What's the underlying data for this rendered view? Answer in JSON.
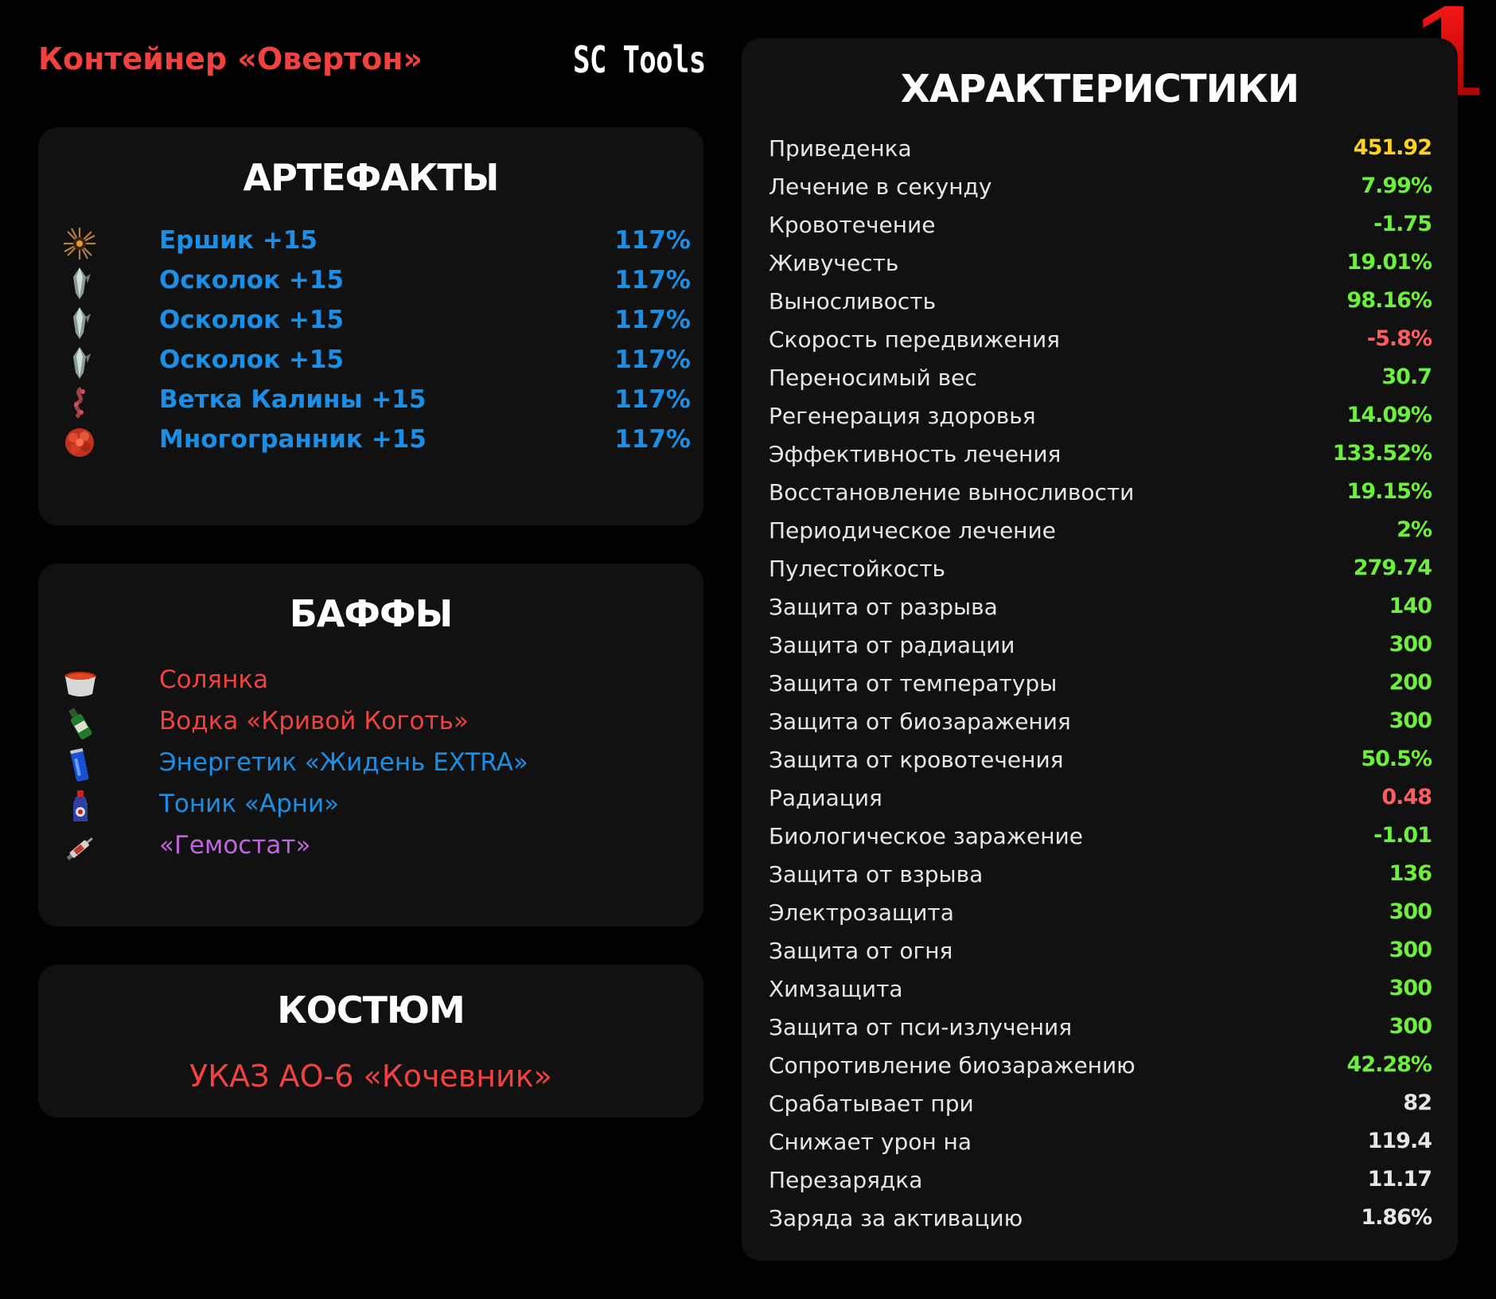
{
  "header": {
    "container_title": "Контейнер «Овертон»",
    "brand": "SC Tools",
    "slot_number": "1"
  },
  "artifacts": {
    "title": "АРТЕФАКТЫ",
    "items": [
      {
        "name": "Ершик +15",
        "percent": "117%",
        "icon": "urchin-artifact-icon"
      },
      {
        "name": "Осколок +15",
        "percent": "117%",
        "icon": "crystal-shard-icon"
      },
      {
        "name": "Осколок +15",
        "percent": "117%",
        "icon": "crystal-shard-icon"
      },
      {
        "name": "Осколок +15",
        "percent": "117%",
        "icon": "crystal-shard-icon"
      },
      {
        "name": "Ветка Калины +15",
        "percent": "117%",
        "icon": "viburnum-branch-icon"
      },
      {
        "name": "Многогранник +15",
        "percent": "117%",
        "icon": "polyhedron-artifact-icon"
      }
    ]
  },
  "buffs": {
    "title": "БАФФЫ",
    "items": [
      {
        "name": "Солянка",
        "color": "#f0423f",
        "icon": "soup-pot-icon"
      },
      {
        "name": "Водка «Кривой Коготь»",
        "color": "#f0423f",
        "icon": "vodka-bottle-icon"
      },
      {
        "name": "Энергетик «Жидень EXTRA»",
        "color": "#1b8fe6",
        "icon": "energy-can-icon"
      },
      {
        "name": "Тоник «Арни»",
        "color": "#1b8fe6",
        "icon": "tonic-bottle-icon"
      },
      {
        "name": "«Гемостат»",
        "color": "#c065e0",
        "icon": "syringe-icon"
      }
    ]
  },
  "suit": {
    "title": "КОСТЮМ",
    "name": "УКАЗ АО-6 «Кочевник»"
  },
  "characteristics": {
    "title": "ХАРАКТЕРИСТИКИ",
    "rows": [
      {
        "label": "Приведенка",
        "value": "451.92",
        "color": "#ffd21f"
      },
      {
        "label": "Лечение в секунду",
        "value": "7.99%",
        "color": "#6cf03c"
      },
      {
        "label": "Кровотечение",
        "value": "-1.75",
        "color": "#6cf03c"
      },
      {
        "label": "Живучесть",
        "value": "19.01%",
        "color": "#6cf03c"
      },
      {
        "label": "Выносливость",
        "value": "98.16%",
        "color": "#6cf03c"
      },
      {
        "label": "Скорость передвижения",
        "value": "-5.8%",
        "color": "#ff5c5c"
      },
      {
        "label": "Переносимый вес",
        "value": "30.7",
        "color": "#6cf03c"
      },
      {
        "label": "Регенерация здоровья",
        "value": "14.09%",
        "color": "#6cf03c"
      },
      {
        "label": "Эффективность лечения",
        "value": "133.52%",
        "color": "#6cf03c"
      },
      {
        "label": "Восстановление выносливости",
        "value": "19.15%",
        "color": "#6cf03c"
      },
      {
        "label": "Периодическое лечение",
        "value": "2%",
        "color": "#6cf03c"
      },
      {
        "label": "Пулестойкость",
        "value": "279.74",
        "color": "#6cf03c"
      },
      {
        "label": "Защита от разрыва",
        "value": "140",
        "color": "#6cf03c"
      },
      {
        "label": "Защита от радиации",
        "value": "300",
        "color": "#6cf03c"
      },
      {
        "label": "Защита от температуры",
        "value": "200",
        "color": "#6cf03c"
      },
      {
        "label": "Защита от биозаражения",
        "value": "300",
        "color": "#6cf03c"
      },
      {
        "label": "Защита от кровотечения",
        "value": "50.5%",
        "color": "#6cf03c"
      },
      {
        "label": "Радиация",
        "value": "0.48",
        "color": "#ff5c5c"
      },
      {
        "label": "Биологическое заражение",
        "value": "-1.01",
        "color": "#6cf03c"
      },
      {
        "label": "Защита от взрыва",
        "value": "136",
        "color": "#6cf03c"
      },
      {
        "label": "Электрозащита",
        "value": "300",
        "color": "#6cf03c"
      },
      {
        "label": "Защита от огня",
        "value": "300",
        "color": "#6cf03c"
      },
      {
        "label": "Химзащита",
        "value": "300",
        "color": "#6cf03c"
      },
      {
        "label": "Защита от пси-излучения",
        "value": "300",
        "color": "#6cf03c"
      },
      {
        "label": "Сопротивление биозаражению",
        "value": "42.28%",
        "color": "#6cf03c"
      },
      {
        "label": "Срабатывает при",
        "value": "82",
        "color": "#e6e6e6"
      },
      {
        "label": "Снижает урон на",
        "value": "119.4",
        "color": "#e6e6e6"
      },
      {
        "label": "Перезарядка",
        "value": "11.17",
        "color": "#e6e6e6"
      },
      {
        "label": "Заряда за активацию",
        "value": "1.86%",
        "color": "#e6e6e6"
      }
    ]
  }
}
